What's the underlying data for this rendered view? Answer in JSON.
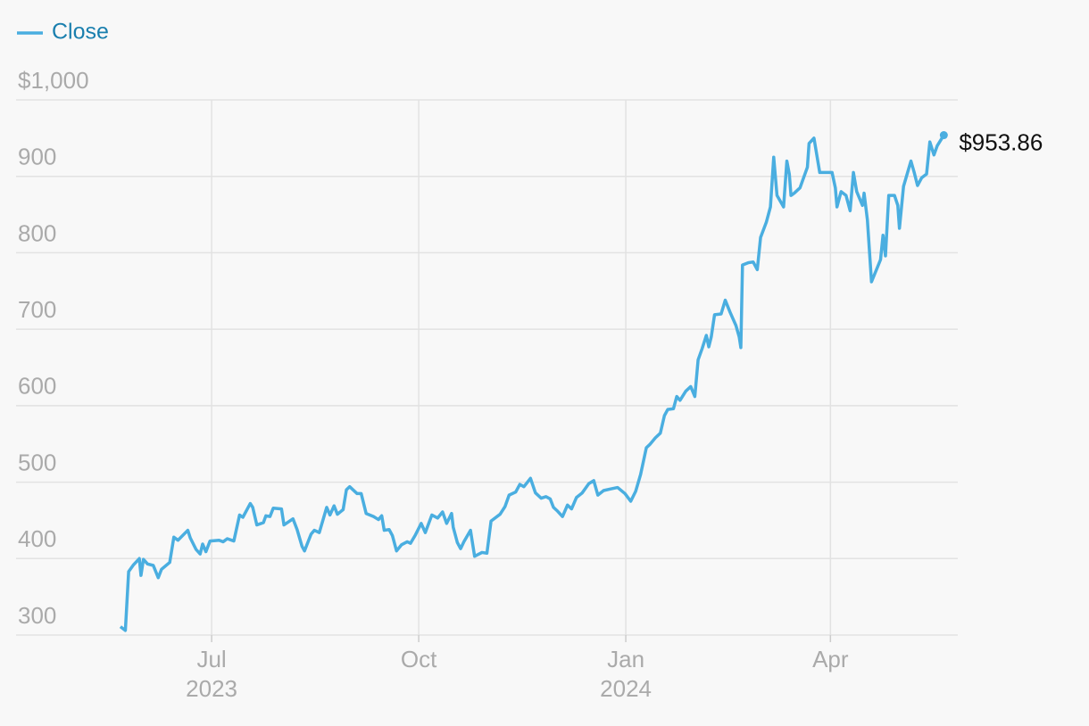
{
  "chart_data": {
    "type": "line",
    "legend": "top-left",
    "grid": true,
    "xlim": [
      2023.258,
      2024.404
    ],
    "ylim": [
      300,
      1000
    ],
    "yticks": [
      300,
      400,
      500,
      600,
      700,
      800,
      900,
      {
        "value": 1000,
        "label": "$1,000"
      }
    ],
    "xticks": [
      {
        "value": 2023.496,
        "label": "Jul",
        "year": "2023"
      },
      {
        "value": 2023.748,
        "label": "Oct"
      },
      {
        "value": 2024.0,
        "label": "Jan",
        "year": "2024"
      },
      {
        "value": 2024.249,
        "label": "Apr"
      }
    ],
    "x": [
      2023.385,
      2023.391,
      2023.395,
      2023.401,
      2023.408,
      2023.41,
      2023.413,
      2023.418,
      2023.425,
      2023.431,
      2023.435,
      2023.445,
      2023.45,
      2023.455,
      2023.467,
      2023.47,
      2023.477,
      2023.482,
      2023.485,
      2023.489,
      2023.494,
      2023.505,
      2023.51,
      2023.515,
      2023.523,
      2023.53,
      2023.534,
      2023.543,
      2023.546,
      2023.551,
      2023.559,
      2023.562,
      2023.567,
      2023.571,
      2023.581,
      2023.584,
      2023.595,
      2023.6,
      2023.606,
      2023.609,
      2023.617,
      2023.621,
      2023.627,
      2023.636,
      2023.64,
      2023.645,
      2023.649,
      2023.656,
      2023.66,
      2023.664,
      2023.673,
      2023.678,
      2023.684,
      2023.693,
      2023.699,
      2023.703,
      2023.706,
      2023.712,
      2023.716,
      2023.721,
      2023.727,
      2023.734,
      2023.738,
      2023.744,
      2023.751,
      2023.756,
      2023.764,
      2023.771,
      2023.777,
      2023.782,
      2023.788,
      2023.79,
      2023.795,
      2023.799,
      2023.803,
      2023.811,
      2023.816,
      2023.825,
      2023.831,
      2023.836,
      2023.847,
      2023.853,
      2023.858,
      2023.866,
      2023.871,
      2023.876,
      2023.884,
      2023.89,
      2023.897,
      2023.903,
      2023.908,
      2023.912,
      2023.917,
      2023.923,
      2023.929,
      2023.934,
      2023.94,
      2023.947,
      2023.955,
      2023.961,
      2023.966,
      2023.973,
      2023.981,
      2023.99,
      2023.999,
      2024.006,
      2024.012,
      2024.018,
      2024.025,
      2024.029,
      2024.036,
      2024.042,
      2024.047,
      2024.051,
      2024.058,
      2024.062,
      2024.066,
      2024.073,
      2024.079,
      2024.084,
      2024.088,
      2024.093,
      2024.098,
      2024.101,
      2024.104,
      2024.108,
      2024.116,
      2024.121,
      2024.127,
      2024.134,
      2024.138,
      2024.14,
      2024.142,
      2024.149,
      2024.155,
      2024.16,
      2024.164,
      2024.171,
      2024.176,
      2024.18,
      2024.184,
      2024.192,
      2024.196,
      2024.199,
      2024.201,
      2024.205,
      2024.212,
      2024.221,
      2024.223,
      2024.229,
      2024.236,
      2024.242,
      2024.251,
      2024.255,
      2024.257,
      2024.262,
      2024.268,
      2024.273,
      2024.277,
      2024.281,
      2024.288,
      2024.29,
      2024.294,
      2024.299,
      2024.31,
      2024.313,
      2024.316,
      2024.32,
      2024.327,
      2024.331,
      2024.333,
      2024.338,
      2024.347,
      2024.351,
      2024.355,
      2024.36,
      2024.366,
      2024.37,
      2024.375,
      2024.379,
      2024.387
    ],
    "series": [
      {
        "name": "Close",
        "color": "#4aaee0",
        "end_label": "$953.86",
        "values": [
          311,
          306,
          383,
          392,
          400,
          378,
          399,
          393,
          391,
          375,
          386,
          395,
          428,
          424,
          437,
          427,
          412,
          406,
          419,
          409,
          423,
          424,
          422,
          426,
          423,
          457,
          454,
          472,
          467,
          444,
          447,
          456,
          455,
          466,
          465,
          444,
          452,
          438,
          416,
          410,
          432,
          437,
          434,
          467,
          457,
          469,
          458,
          464,
          490,
          494,
          485,
          485,
          459,
          455,
          451,
          456,
          437,
          438,
          430,
          410,
          418,
          422,
          420,
          431,
          446,
          434,
          457,
          453,
          461,
          446,
          459,
          441,
          421,
          413,
          422,
          437,
          403,
          408,
          407,
          449,
          458,
          468,
          483,
          487,
          497,
          494,
          505,
          486,
          479,
          481,
          478,
          467,
          462,
          455,
          470,
          465,
          480,
          486,
          498,
          502,
          483,
          489,
          491,
          493,
          485,
          475,
          488,
          510,
          545,
          549,
          558,
          564,
          587,
          595,
          596,
          612,
          607,
          619,
          625,
          612,
          660,
          675,
          692,
          677,
          690,
          719,
          720,
          738,
          722,
          705,
          690,
          676,
          784,
          787,
          788,
          778,
          820,
          840,
          860,
          925,
          875,
          860,
          920,
          903,
          875,
          878,
          885,
          912,
          943,
          950,
          905,
          905,
          905,
          885,
          860,
          880,
          875,
          855,
          905,
          880,
          862,
          878,
          843,
          762,
          791,
          823,
          796,
          875,
          875,
          862,
          832,
          887,
          920,
          905,
          888,
          898,
          903,
          945,
          928,
          940,
          953.86
        ]
      }
    ]
  }
}
